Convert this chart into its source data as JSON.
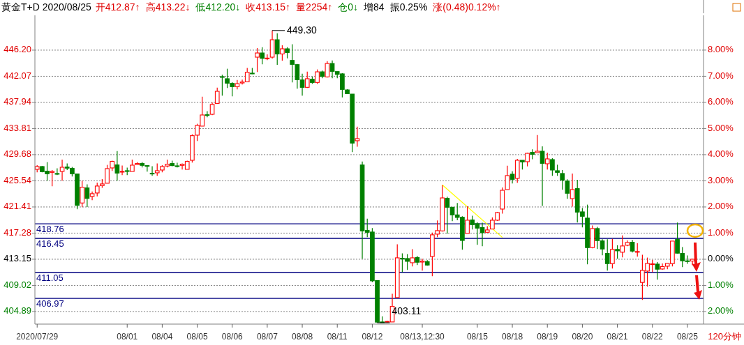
{
  "chart_data": {
    "type": "candlestick",
    "title": "黄金T+D 2020/08/25",
    "xlabel": "120分钟",
    "categories": [
      "2020/07/29",
      null,
      null,
      null,
      null,
      null,
      null,
      null,
      null,
      null,
      null,
      null,
      null,
      null,
      null,
      null,
      null,
      null,
      "08/01",
      null,
      null,
      null,
      null,
      null,
      null,
      "08/04",
      null,
      null,
      null,
      null,
      null,
      null,
      "08/05",
      null,
      null,
      null,
      null,
      null,
      null,
      "08/06",
      null,
      null,
      null,
      null,
      null,
      null,
      "08/07",
      null,
      null,
      null,
      null,
      null,
      null,
      "08/08",
      null,
      null,
      null,
      null,
      null,
      null,
      "08/11",
      null,
      null,
      null,
      null,
      null,
      null,
      "08/12",
      null,
      null,
      null,
      null,
      null,
      null,
      null,
      null,
      null,
      "08/13,12:30",
      null,
      null,
      null,
      null,
      null,
      null,
      null,
      null,
      null,
      null,
      "08/15",
      null,
      null,
      null,
      null,
      null,
      null,
      "08/18",
      null,
      null,
      null,
      null,
      null,
      null,
      "08/19",
      null,
      null,
      null,
      null,
      null,
      null,
      "08/20",
      null,
      null,
      null,
      null,
      null,
      null,
      "08/21",
      null,
      null,
      null,
      null,
      null,
      null,
      "08/22",
      null,
      null,
      null,
      null,
      null,
      null,
      "08/25",
      null
    ],
    "ohlc": [
      [
        427.36,
        428.02,
        426.88,
        427.8
      ],
      [
        427.8,
        427.91,
        426.88,
        426.99
      ],
      [
        427.07,
        428.5,
        425.56,
        426.66
      ],
      [
        426.88,
        427.25,
        424.68,
        427.03
      ],
      [
        426.7,
        427.51,
        426.44,
        426.63
      ],
      [
        427.03,
        428.9,
        425.56,
        427.69
      ],
      [
        427.73,
        428.28,
        427.25,
        427.55
      ],
      [
        427.51,
        427.73,
        426.22,
        426.66
      ],
      [
        426.63,
        426.63,
        421.05,
        421.67
      ],
      [
        422.04,
        425.56,
        421.38,
        424.54
      ],
      [
        424.43,
        424.98,
        421.42,
        422.77
      ],
      [
        423.07,
        423.87,
        422.48,
        423.51
      ],
      [
        423.62,
        425.27,
        423.1,
        424.72
      ],
      [
        424.79,
        425.82,
        424.43,
        425.05
      ],
      [
        425.16,
        428.06,
        425.16,
        427.47
      ],
      [
        427.58,
        428.72,
        427.11,
        428.61
      ],
      [
        428.06,
        430.26,
        425.56,
        426.77
      ],
      [
        426.99,
        427.95,
        426.44,
        427.03
      ],
      [
        427.14,
        427.62,
        426.44,
        427.11
      ],
      [
        427.03,
        428.9,
        427.03,
        428.02
      ],
      [
        428.1,
        428.5,
        428.1,
        428.28
      ],
      [
        428.28,
        428.5,
        427.66,
        427.99
      ],
      [
        427.95,
        427.95,
        426.99,
        427.88
      ],
      [
        426.74,
        427.84,
        426.33,
        426.66
      ],
      [
        426.81,
        428.28,
        426.33,
        427.14
      ],
      [
        427.25,
        428.02,
        426.88,
        427.8
      ],
      [
        427.88,
        428.9,
        427.66,
        428.17
      ],
      [
        428.28,
        428.72,
        427.84,
        427.95
      ],
      [
        427.91,
        428.39,
        427.66,
        427.88
      ],
      [
        427.99,
        428.28,
        427.33,
        428.17
      ],
      [
        427.36,
        428.72,
        427.36,
        428.61
      ],
      [
        428.79,
        432.9,
        428.43,
        432.68
      ],
      [
        432.76,
        434.56,
        431.84,
        434.3
      ],
      [
        434.19,
        438.85,
        434.19,
        435.95
      ],
      [
        435.99,
        436.54,
        435.58,
        435.91
      ],
      [
        436.06,
        437.93,
        435.91,
        437.61
      ],
      [
        437.78,
        440.28,
        437.71,
        439.69
      ],
      [
        442.01,
        442.3,
        439.0,
        441.9
      ],
      [
        441.68,
        443.26,
        440.21,
        440.98
      ],
      [
        440.94,
        441.12,
        438.89,
        440.43
      ],
      [
        440.43,
        441.49,
        439.99,
        440.9
      ],
      [
        441.01,
        441.53,
        440.76,
        441.16
      ],
      [
        441.2,
        443.37,
        441.2,
        442.7
      ],
      [
        442.56,
        443.37,
        442.41,
        442.48
      ],
      [
        445.09,
        446.52,
        442.74,
        445.75
      ],
      [
        445.75,
        446.67,
        443.95,
        444.9
      ],
      [
        444.9,
        445.53,
        444.61,
        444.94
      ],
      [
        445.09,
        449.3,
        444.87,
        447.84
      ],
      [
        447.84,
        448.87,
        443.88,
        445.6
      ],
      [
        445.6,
        446.97,
        444.53,
        446.41
      ],
      [
        446.41,
        446.67,
        444.9,
        445.82
      ],
      [
        444.57,
        447.14,
        441.09,
        443.95
      ],
      [
        443.91,
        444.02,
        440.1,
        441.53
      ],
      [
        441.49,
        442.48,
        439.0,
        440.32
      ],
      [
        440.32,
        442.81,
        440.21,
        441.68
      ],
      [
        441.6,
        442.01,
        440.87,
        441.09
      ],
      [
        441.09,
        443.15,
        440.87,
        442.77
      ],
      [
        442.77,
        442.96,
        441.75,
        442.04
      ],
      [
        441.97,
        444.46,
        441.86,
        444.09
      ],
      [
        444.09,
        444.57,
        441.75,
        442.85
      ],
      [
        442.81,
        442.81,
        441.75,
        442.37
      ],
      [
        442.45,
        442.56,
        438.74,
        439.99
      ],
      [
        439.91,
        440.02,
        439.25,
        439.32
      ],
      [
        439.25,
        439.25,
        430.08,
        431.51
      ],
      [
        431.88,
        434.11,
        430.93,
        432.21
      ],
      [
        428.05,
        428.6,
        413.23,
        417.63
      ],
      [
        417.7,
        419.57,
        416.64,
        417.41
      ],
      [
        417.45,
        418.07,
        409.52,
        409.74
      ],
      [
        409.78,
        409.78,
        403.11,
        403.21
      ],
      [
        403.24,
        404.12,
        403.17,
        403.21
      ],
      [
        403.24,
        403.39,
        403.17,
        403.32
      ],
      [
        403.24,
        407.68,
        403.24,
        405.7
      ],
      [
        407.1,
        415.5,
        407.1,
        413.37
      ],
      [
        413.3,
        414.07,
        411.1,
        413.23
      ],
      [
        413.26,
        413.96,
        411.46,
        412.82
      ],
      [
        412.6,
        414.73,
        412.01,
        413.37
      ],
      [
        413.41,
        413.67,
        412.23,
        412.68
      ],
      [
        412.71,
        413.23,
        411.35,
        412.86
      ],
      [
        412.79,
        413.0,
        412.12,
        412.23
      ],
      [
        413.59,
        417.37,
        410.47,
        417.01
      ],
      [
        417.12,
        419.28,
        416.64,
        417.67
      ],
      [
        417.63,
        424.86,
        417.52,
        422.84
      ],
      [
        422.77,
        423.03,
        417.19,
        421.37
      ],
      [
        421.37,
        421.37,
        419.17,
        420.16
      ],
      [
        420.16,
        422.03,
        419.32,
        419.76
      ],
      [
        419.79,
        419.94,
        414.66,
        416.12
      ],
      [
        417.23,
        421.52,
        417.23,
        419.32
      ],
      [
        419.36,
        420.02,
        417.85,
        418.62
      ],
      [
        418.77,
        418.99,
        415.43,
        418.07
      ],
      [
        418.15,
        418.92,
        415.21,
        417.34
      ],
      [
        417.41,
        418.37,
        417.41,
        417.78
      ],
      [
        417.93,
        419.76,
        417.93,
        419.32
      ],
      [
        419.32,
        420.64,
        419.21,
        420.53
      ],
      [
        421.08,
        424.49,
        420.35,
        424.05
      ],
      [
        424.16,
        427.94,
        424.16,
        426.37
      ],
      [
        426.59,
        427.06,
        425.12,
        425.78
      ],
      [
        425.93,
        429.01,
        425.23,
        428.79
      ],
      [
        428.79,
        428.79,
        427.32,
        428.53
      ],
      [
        428.57,
        430.0,
        427.83,
        429.89
      ],
      [
        430.04,
        430.51,
        428.94,
        429.74
      ],
      [
        430.0,
        432.79,
        430.0,
        430.22
      ],
      [
        430.22,
        430.99,
        421.56,
        428.31
      ],
      [
        428.24,
        430.0,
        427.32,
        429.01
      ],
      [
        428.9,
        429.12,
        426.33,
        427.25
      ],
      [
        427.14,
        428.09,
        426.33,
        426.88
      ],
      [
        426.7,
        427.25,
        424.13,
        425.67
      ],
      [
        425.52,
        425.78,
        422.7,
        423.58
      ],
      [
        422.73,
        426.7,
        421.45,
        424.16
      ],
      [
        424.31,
        425.71,
        418.95,
        420.6
      ],
      [
        420.64,
        421.23,
        418.18,
        419.94
      ],
      [
        419.65,
        421.78,
        412.35,
        414.99
      ],
      [
        414.99,
        418.48,
        414.88,
        418.0
      ],
      [
        418.0,
        418.26,
        414.77,
        416.09
      ],
      [
        416.05,
        416.31,
        413.78,
        414.77
      ],
      [
        414.07,
        416.31,
        411.36,
        412.46
      ],
      [
        412.46,
        416.38,
        411.69,
        414.7
      ],
      [
        414.7,
        415.36,
        413.23,
        414.48
      ],
      [
        414.26,
        416.93,
        413.45,
        415.25
      ],
      [
        415.36,
        416.13,
        415.21,
        415.8
      ],
      [
        415.83,
        416.2,
        414.22,
        414.44
      ],
      [
        414.33,
        415.69,
        413.56,
        414.37
      ],
      [
        409.49,
        413.85,
        406.73,
        411.39
      ],
      [
        411.28,
        413.41,
        408.82,
        412.49
      ],
      [
        412.35,
        413.05,
        411.1,
        412.42
      ],
      [
        412.38,
        412.71,
        409.93,
        411.58
      ],
      [
        411.61,
        412.49,
        411.5,
        411.98
      ],
      [
        412.05,
        412.49,
        411.58,
        412.49
      ],
      [
        412.46,
        416.02,
        412.02,
        416.02
      ],
      [
        416.27,
        418.95,
        414.04,
        414.11
      ],
      [
        414.07,
        415.06,
        411.91,
        412.9
      ],
      [
        412.9,
        413.74,
        412.42,
        412.86
      ],
      [
        412.87,
        413.22,
        412.2,
        413.15
      ]
    ],
    "colors": [
      "#ff0000",
      "#008000",
      "#008000",
      "#ff0000",
      "#008000",
      "#ff0000",
      "#008000",
      "#008000",
      "#008000",
      "#ff0000",
      "#008000",
      "#ff0000",
      "#ff0000",
      "#ff0000",
      "#ff0000",
      "#ff0000",
      "#008000",
      "#ff0000",
      "#008000",
      "#ff0000",
      "#ff0000",
      "#008000",
      "#008000",
      "#008000",
      "#ff0000",
      "#ff0000",
      "#ff0000",
      "#008000",
      "#008000",
      "#ff0000",
      "#ff0000",
      "#ff0000",
      "#ff0000",
      "#ff0000",
      "#008000",
      "#ff0000",
      "#ff0000",
      "#008000",
      "#008000",
      "#008000",
      "#ff0000",
      "#ff0000",
      "#ff0000",
      "#008000",
      "#ff0000",
      "#008000",
      "#ff0000",
      "#ff0000",
      "#008000",
      "#ff0000",
      "#008000",
      "#008000",
      "#008000",
      "#008000",
      "#ff0000",
      "#008000",
      "#ff0000",
      "#008000",
      "#ff0000",
      "#008000",
      "#008000",
      "#008000",
      "#008000",
      "#008000",
      "#ff0000",
      "#008000",
      "#008000",
      "#008000",
      "#008000",
      "#008000",
      "#ff0000",
      "#ff0000",
      "#ff0000",
      "#008000",
      "#008000",
      "#ff0000",
      "#008000",
      "#ff0000",
      "#008000",
      "#ff0000",
      "#ff0000",
      "#ff0000",
      "#008000",
      "#008000",
      "#008000",
      "#008000",
      "#ff0000",
      "#008000",
      "#008000",
      "#008000",
      "#ff0000",
      "#ff0000",
      "#ff0000",
      "#ff0000",
      "#ff0000",
      "#008000",
      "#ff0000",
      "#008000",
      "#ff0000",
      "#008000",
      "#ff0000",
      "#008000",
      "#ff0000",
      "#008000",
      "#008000",
      "#008000",
      "#008000",
      "#ff0000",
      "#008000",
      "#008000",
      "#008000",
      "#ff0000",
      "#008000",
      "#008000",
      "#008000",
      "#ff0000",
      "#008000",
      "#ff0000",
      "#ff0000",
      "#008000",
      "#ff0000",
      "#ff0000",
      "#ff0000",
      "#ff0000",
      "#008000",
      "#ff0000",
      "#ff0000",
      "#ff0000",
      "#008000",
      "#008000",
      "#008000",
      "#ff0000"
    ],
    "series": [
      {
        "type": "line",
        "color": "#ffff00",
        "values": [
          null,
          null,
          null,
          null,
          null,
          null,
          null,
          null,
          null,
          null,
          null,
          null,
          null,
          null,
          null,
          null,
          null,
          null,
          null,
          null,
          null,
          null,
          null,
          null,
          null,
          null,
          null,
          null,
          null,
          null,
          null,
          null,
          null,
          null,
          null,
          null,
          null,
          null,
          null,
          null,
          null,
          null,
          null,
          null,
          null,
          null,
          null,
          null,
          null,
          null,
          null,
          null,
          null,
          null,
          null,
          null,
          null,
          null,
          null,
          null,
          null,
          null,
          null,
          null,
          null,
          null,
          null,
          null,
          null,
          null,
          null,
          null,
          null,
          null,
          null,
          null,
          null,
          null,
          null,
          null,
          null,
          424.9,
          null,
          null,
          null,
          null,
          null,
          null,
          null,
          null,
          null,
          null,
          null,
          416.6,
          null,
          null,
          null,
          null,
          null,
          null,
          null,
          null,
          null,
          null,
          null,
          null,
          null,
          null,
          null,
          null,
          null,
          null,
          null,
          null,
          null,
          null,
          null,
          null,
          null,
          null,
          null,
          null,
          null,
          null,
          null,
          null,
          null,
          null,
          null,
          null,
          null,
          null
        ]
      }
    ],
    "ylim": [
      402.9,
      451.7
    ],
    "yticks": [
      {
        "value": 446.2,
        "label": "446.20"
      },
      {
        "value": 442.07,
        "label": "442.07"
      },
      {
        "value": 437.94,
        "label": "437.94"
      },
      {
        "value": 433.81,
        "label": "433.81"
      },
      {
        "value": 429.68,
        "label": "429.68"
      },
      {
        "value": 425.54,
        "label": "425.54"
      },
      {
        "value": 421.41,
        "label": "421.41"
      },
      {
        "value": 417.28,
        "label": "417.28"
      },
      {
        "value": 413.15,
        "label": "413.15"
      },
      {
        "value": 409.02,
        "label": "409.02"
      },
      {
        "value": 404.89,
        "label": "404.89"
      }
    ],
    "y2lim": [
      -2.48,
      9.33
    ],
    "y2ticks": [
      {
        "value": 8,
        "label": "8.00%"
      },
      {
        "value": 7,
        "label": "7.00%"
      },
      {
        "value": 6,
        "label": "6.00%"
      },
      {
        "value": 5,
        "label": "5.00%"
      },
      {
        "value": 4,
        "label": "4.00%"
      },
      {
        "value": 3,
        "label": "3.00%"
      },
      {
        "value": 2,
        "label": "2.00%"
      },
      {
        "value": 1,
        "label": "1.00%"
      },
      {
        "value": 0,
        "label": "0.00%"
      },
      {
        "value": -1,
        "label": "1.00%"
      },
      {
        "value": -2,
        "label": "2.00%"
      }
    ],
    "grid": "y",
    "ref_lines": [
      {
        "axis": "y",
        "value": 418.76,
        "label": "418.76",
        "color": "#000080"
      },
      {
        "axis": "y",
        "value": 416.45,
        "label": "416.45",
        "color": "#000080"
      },
      {
        "axis": "y",
        "value": 411.05,
        "label": "411.05",
        "color": "#000080"
      },
      {
        "axis": "y",
        "value": 406.97,
        "label": "406.97",
        "color": "#000080"
      }
    ],
    "annotations": [
      "开412.87↑",
      "高413.22↓",
      "低412.20↓",
      "收413.15↑",
      "量2254↑",
      "仓0↓",
      "增84",
      "振0.25%",
      "涨(0.48)0.12%↑",
      "449.30",
      "403.11"
    ]
  }
}
